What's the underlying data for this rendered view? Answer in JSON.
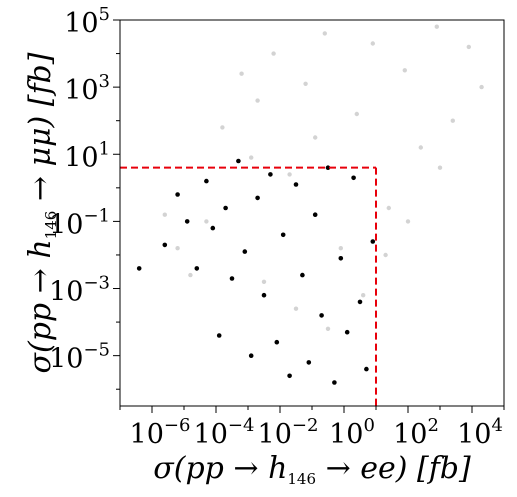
{
  "chart_data": {
    "type": "scatter",
    "title": "",
    "xlabel": "σ(pp → h146 → ee) [fb]",
    "ylabel": "σ(pp → h146 → μμ) [fb]",
    "xlabel_parts": {
      "pre": "σ(pp → h",
      "sub": "146",
      "post": " → ee) [fb]"
    },
    "ylabel_parts": {
      "pre": "σ(pp → h",
      "sub": "146",
      "post": " → μμ) [fb]"
    },
    "x_scale": "log",
    "y_scale": "log",
    "xlim_log10": [
      -7.0,
      5.0
    ],
    "ylim_log10": [
      -6.5,
      5.0
    ],
    "x_ticks": [
      {
        "exp": -6,
        "base": "10",
        "sup": "−6"
      },
      {
        "exp": -4,
        "base": "10",
        "sup": "−4"
      },
      {
        "exp": -2,
        "base": "10",
        "sup": "−2"
      },
      {
        "exp": 0,
        "base": "10",
        "sup": "0"
      },
      {
        "exp": 2,
        "base": "10",
        "sup": "2"
      },
      {
        "exp": 4,
        "base": "10",
        "sup": "4"
      }
    ],
    "y_ticks": [
      {
        "exp": -5,
        "base": "10",
        "sup": "−5"
      },
      {
        "exp": -3,
        "base": "10",
        "sup": "−3"
      },
      {
        "exp": -1,
        "base": "10",
        "sup": "−1"
      },
      {
        "exp": 1,
        "base": "10",
        "sup": "1"
      },
      {
        "exp": 3,
        "base": "10",
        "sup": "3"
      },
      {
        "exp": 5,
        "base": "10",
        "sup": "5"
      }
    ],
    "grid": false,
    "legend": "none",
    "series": [
      {
        "color": "#d3d3d3",
        "points_log10": [
          [
            -4.3,
            -1.0
          ],
          [
            -3.8,
            1.8
          ],
          [
            -3.2,
            3.4
          ],
          [
            -2.7,
            2.6
          ],
          [
            -2.2,
            4.0
          ],
          [
            -1.7,
            0.4
          ],
          [
            -1.2,
            3.1
          ],
          [
            -0.6,
            4.6
          ],
          [
            -0.1,
            -1.8
          ],
          [
            0.4,
            2.2
          ],
          [
            0.9,
            4.3
          ],
          [
            1.4,
            -0.6
          ],
          [
            1.9,
            3.5
          ],
          [
            2.4,
            1.2
          ],
          [
            2.9,
            4.8
          ],
          [
            3.4,
            2.0
          ],
          [
            3.9,
            4.2
          ],
          [
            4.3,
            3.0
          ],
          [
            -2.5,
            -2.8
          ],
          [
            -1.5,
            -3.6
          ],
          [
            -0.5,
            -4.2
          ],
          [
            0.6,
            -3.2
          ],
          [
            1.3,
            -2.0
          ],
          [
            -5.2,
            -1.8
          ],
          [
            -4.8,
            -2.6
          ],
          [
            -5.6,
            -0.8
          ],
          [
            2.0,
            -1.0
          ],
          [
            3.0,
            0.6
          ],
          [
            -2.9,
            0.9
          ],
          [
            -0.9,
            1.5
          ]
        ]
      },
      {
        "color": "#000000",
        "points_log10": [
          [
            -6.4,
            -2.4
          ],
          [
            -5.6,
            -1.7
          ],
          [
            -5.2,
            -0.2
          ],
          [
            -4.9,
            -1.0
          ],
          [
            -4.6,
            -2.4
          ],
          [
            -4.3,
            0.2
          ],
          [
            -4.1,
            -1.2
          ],
          [
            -3.9,
            -4.4
          ],
          [
            -3.7,
            -0.6
          ],
          [
            -3.5,
            -2.7
          ],
          [
            -3.3,
            0.8
          ],
          [
            -3.1,
            -1.9
          ],
          [
            -2.9,
            -5.0
          ],
          [
            -2.7,
            -0.3
          ],
          [
            -2.5,
            -3.2
          ],
          [
            -2.3,
            0.4
          ],
          [
            -2.1,
            -4.6
          ],
          [
            -1.9,
            -1.4
          ],
          [
            -1.7,
            -5.6
          ],
          [
            -1.5,
            0.1
          ],
          [
            -1.3,
            -2.6
          ],
          [
            -1.1,
            -5.2
          ],
          [
            -0.9,
            -0.8
          ],
          [
            -0.7,
            -3.8
          ],
          [
            -0.5,
            0.6
          ],
          [
            -0.3,
            -5.8
          ],
          [
            -0.1,
            -2.1
          ],
          [
            0.1,
            -4.3
          ],
          [
            0.3,
            0.3
          ],
          [
            0.5,
            -3.4
          ],
          [
            0.7,
            -5.4
          ],
          [
            0.9,
            -1.6
          ]
        ]
      }
    ],
    "cut_lines": {
      "color": "#e8000b",
      "x_max_log10": 1.0,
      "y_max_log10": 0.6
    }
  }
}
